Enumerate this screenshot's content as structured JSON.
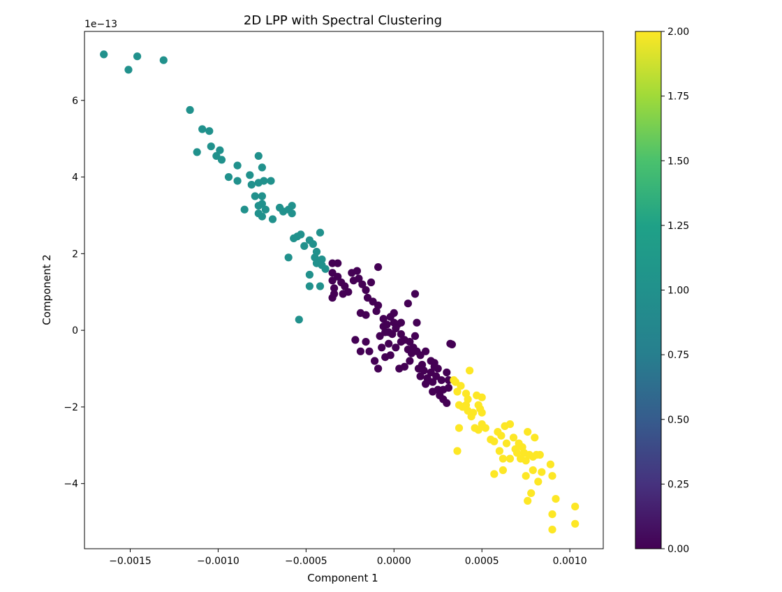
{
  "chart_data": {
    "type": "scatter",
    "title": "2D LPP with Spectral Clustering",
    "xlabel": "Component 1",
    "ylabel": "Component 2",
    "y_offset_label": "1e−13",
    "xlim": [
      -0.00176,
      0.00119
    ],
    "ylim": [
      -5.7,
      7.8
    ],
    "x_ticks": [
      {
        "value": -0.0015,
        "label": "−0.0015"
      },
      {
        "value": -0.001,
        "label": "−0.0010"
      },
      {
        "value": -0.0005,
        "label": "−0.0005"
      },
      {
        "value": 0.0,
        "label": "0.0000"
      },
      {
        "value": 0.0005,
        "label": "0.0005"
      },
      {
        "value": 0.001,
        "label": "0.0010"
      }
    ],
    "y_ticks": [
      {
        "value": -4,
        "label": "−4"
      },
      {
        "value": -2,
        "label": "−2"
      },
      {
        "value": 0,
        "label": "0"
      },
      {
        "value": 2,
        "label": "2"
      },
      {
        "value": 4,
        "label": "4"
      },
      {
        "value": 6,
        "label": "6"
      }
    ],
    "grid": false,
    "colorbar": {
      "colormap": "viridis",
      "range": [
        0,
        2
      ],
      "ticks": [
        {
          "value": 0.0,
          "label": "0.00"
        },
        {
          "value": 0.25,
          "label": "0.25"
        },
        {
          "value": 0.5,
          "label": "0.50"
        },
        {
          "value": 0.75,
          "label": "0.75"
        },
        {
          "value": 1.0,
          "label": "1.00"
        },
        {
          "value": 1.25,
          "label": "1.25"
        },
        {
          "value": 1.5,
          "label": "1.50"
        },
        {
          "value": 1.75,
          "label": "1.75"
        },
        {
          "value": 2.0,
          "label": "2.00"
        }
      ]
    },
    "series": [
      {
        "cluster": 1,
        "color": "#21918c",
        "points": [
          [
            -0.00165,
            7.2
          ],
          [
            -0.00146,
            7.15
          ],
          [
            -0.00151,
            6.8
          ],
          [
            -0.00131,
            7.05
          ],
          [
            -0.00116,
            5.75
          ],
          [
            -0.00109,
            5.25
          ],
          [
            -0.00105,
            5.2
          ],
          [
            -0.00112,
            4.65
          ],
          [
            -0.00104,
            4.8
          ],
          [
            -0.00099,
            4.7
          ],
          [
            -0.00101,
            4.55
          ],
          [
            -0.00098,
            4.45
          ],
          [
            -0.00094,
            4.0
          ],
          [
            -0.00089,
            4.3
          ],
          [
            -0.00089,
            3.9
          ],
          [
            -0.00082,
            4.05
          ],
          [
            -0.00077,
            4.55
          ],
          [
            -0.00081,
            3.8
          ],
          [
            -0.00077,
            3.85
          ],
          [
            -0.00075,
            4.25
          ],
          [
            -0.00074,
            3.9
          ],
          [
            -0.0007,
            3.9
          ],
          [
            -0.00075,
            3.5
          ],
          [
            -0.00079,
            3.5
          ],
          [
            -0.00075,
            3.3
          ],
          [
            -0.00077,
            3.25
          ],
          [
            -0.00073,
            3.15
          ],
          [
            -0.00077,
            3.05
          ],
          [
            -0.00075,
            2.97
          ],
          [
            -0.00085,
            3.15
          ],
          [
            -0.00069,
            2.9
          ],
          [
            -0.00065,
            3.2
          ],
          [
            -0.00063,
            3.1
          ],
          [
            -0.0006,
            3.15
          ],
          [
            -0.00058,
            3.25
          ],
          [
            -0.00058,
            3.05
          ],
          [
            -0.00055,
            2.45
          ],
          [
            -0.00053,
            2.5
          ],
          [
            -0.00057,
            2.4
          ],
          [
            -0.00051,
            2.2
          ],
          [
            -0.00048,
            2.35
          ],
          [
            -0.00046,
            2.25
          ],
          [
            -0.00044,
            2.05
          ],
          [
            -0.00042,
            2.55
          ],
          [
            -0.00045,
            1.9
          ],
          [
            -0.00044,
            1.75
          ],
          [
            -0.00041,
            1.85
          ],
          [
            -0.00041,
            1.7
          ],
          [
            -0.00039,
            1.6
          ],
          [
            -0.00048,
            1.45
          ],
          [
            -0.00048,
            1.15
          ],
          [
            -0.00042,
            1.15
          ],
          [
            -0.0006,
            1.9
          ],
          [
            -0.00054,
            0.28
          ]
        ]
      },
      {
        "cluster": 0,
        "color": "#440154",
        "points": [
          [
            -0.00035,
            1.75
          ],
          [
            -0.00032,
            1.75
          ],
          [
            -0.00035,
            1.5
          ],
          [
            -0.00032,
            1.4
          ],
          [
            -0.00035,
            1.3
          ],
          [
            -0.00034,
            1.1
          ],
          [
            -0.00035,
            0.85
          ],
          [
            -0.00034,
            0.95
          ],
          [
            -0.0003,
            1.25
          ],
          [
            -0.00028,
            1.15
          ],
          [
            -0.00026,
            1.0
          ],
          [
            -0.00029,
            0.95
          ],
          [
            -0.00024,
            1.5
          ],
          [
            -0.00023,
            1.3
          ],
          [
            -0.00021,
            1.55
          ],
          [
            -0.0002,
            1.35
          ],
          [
            -0.00018,
            1.2
          ],
          [
            -0.00016,
            1.05
          ],
          [
            -0.00013,
            1.25
          ],
          [
            -9e-05,
            1.65
          ],
          [
            -0.00012,
            0.75
          ],
          [
            -0.00015,
            0.85
          ],
          [
            -0.00019,
            0.45
          ],
          [
            -0.00016,
            0.4
          ],
          [
            -9e-05,
            0.65
          ],
          [
            -6e-05,
            0.3
          ],
          [
            -4e-05,
            0.15
          ],
          [
            -2e-05,
            0.35
          ],
          [
            0.0,
            0.45
          ],
          [
            0.0,
            0.2
          ],
          [
            2e-05,
            0.15
          ],
          [
            4e-05,
            0.2
          ],
          [
            1e-05,
            0.05
          ],
          [
            -3e-05,
            -0.05
          ],
          [
            -8e-05,
            -0.15
          ],
          [
            -5e-05,
            -0.05
          ],
          [
            4e-05,
            -0.1
          ],
          [
            6e-05,
            -0.25
          ],
          [
            9e-05,
            -0.3
          ],
          [
            8e-05,
            0.7
          ],
          [
            0.00012,
            0.95
          ],
          [
            0.00013,
            0.2
          ],
          [
            0.00012,
            -0.15
          ],
          [
            8e-05,
            -0.5
          ],
          [
            0.00011,
            -0.45
          ],
          [
            0.00013,
            -0.55
          ],
          [
            0.00015,
            -0.65
          ],
          [
            0.00016,
            -0.9
          ],
          [
            0.00018,
            -0.55
          ],
          [
            0.00021,
            -0.8
          ],
          [
            0.00023,
            -0.85
          ],
          [
            0.00025,
            -1.0
          ],
          [
            0.00021,
            -1.1
          ],
          [
            0.00024,
            -1.2
          ],
          [
            0.00022,
            -1.35
          ],
          [
            0.00019,
            -1.25
          ],
          [
            0.00017,
            -1.05
          ],
          [
            0.00014,
            -1.0
          ],
          [
            0.00015,
            -1.2
          ],
          [
            0.00018,
            -1.4
          ],
          [
            0.00022,
            -1.6
          ],
          [
            0.00025,
            -1.55
          ],
          [
            0.00027,
            -1.3
          ],
          [
            0.00028,
            -1.55
          ],
          [
            0.00026,
            -1.7
          ],
          [
            0.00028,
            -1.8
          ],
          [
            0.0003,
            -1.9
          ],
          [
            0.00031,
            -1.5
          ],
          [
            0.00031,
            -1.3
          ],
          [
            0.0003,
            -1.1
          ],
          [
            0.00023,
            -0.95
          ],
          [
            0.00032,
            -0.35
          ],
          [
            0.00033,
            -0.37
          ],
          [
            1e-05,
            -0.45
          ],
          [
            -3e-05,
            -0.35
          ],
          [
            -7e-05,
            -0.45
          ],
          [
            -0.00011,
            -0.8
          ],
          [
            -0.00014,
            -0.55
          ],
          [
            -0.00016,
            -0.3
          ],
          [
            -0.00022,
            -0.25
          ],
          [
            -0.00019,
            -0.55
          ],
          [
            -9e-05,
            -1.0
          ],
          [
            -5e-05,
            -0.7
          ],
          [
            -2e-05,
            -0.65
          ],
          [
            3e-05,
            -1.0
          ],
          [
            6e-05,
            -0.95
          ],
          [
            9e-05,
            -0.8
          ],
          [
            0.0001,
            -0.6
          ],
          [
            4e-05,
            -0.3
          ],
          [
            -1e-05,
            -0.1
          ],
          [
            -6e-05,
            0.1
          ],
          [
            -0.0001,
            0.5
          ]
        ]
      },
      {
        "cluster": 2,
        "color": "#fde725",
        "points": [
          [
            0.00034,
            -1.3
          ],
          [
            0.00035,
            -1.35
          ],
          [
            0.00038,
            -1.45
          ],
          [
            0.00036,
            -1.6
          ],
          [
            0.00041,
            -1.65
          ],
          [
            0.00042,
            -1.8
          ],
          [
            0.00041,
            -1.95
          ],
          [
            0.00039,
            -2.0
          ],
          [
            0.00037,
            -1.95
          ],
          [
            0.00042,
            -2.1
          ],
          [
            0.00047,
            -1.7
          ],
          [
            0.00048,
            -1.95
          ],
          [
            0.0005,
            -1.75
          ],
          [
            0.00049,
            -2.05
          ],
          [
            0.00045,
            -2.15
          ],
          [
            0.00044,
            -2.25
          ],
          [
            0.0005,
            -2.15
          ],
          [
            0.00046,
            -2.55
          ],
          [
            0.00048,
            -2.6
          ],
          [
            0.0005,
            -2.45
          ],
          [
            0.00052,
            -2.55
          ],
          [
            0.00043,
            -1.05
          ],
          [
            0.00037,
            -2.55
          ],
          [
            0.00036,
            -3.15
          ],
          [
            0.00055,
            -2.85
          ],
          [
            0.00057,
            -2.9
          ],
          [
            0.00059,
            -2.65
          ],
          [
            0.00061,
            -2.75
          ],
          [
            0.00063,
            -2.5
          ],
          [
            0.00066,
            -2.45
          ],
          [
            0.00068,
            -2.8
          ],
          [
            0.00064,
            -2.95
          ],
          [
            0.0006,
            -3.15
          ],
          [
            0.00062,
            -3.35
          ],
          [
            0.00066,
            -3.35
          ],
          [
            0.00069,
            -3.1
          ],
          [
            0.00071,
            -2.95
          ],
          [
            0.00073,
            -3.05
          ],
          [
            0.00074,
            -3.2
          ],
          [
            0.00072,
            -3.35
          ],
          [
            0.00075,
            -3.4
          ],
          [
            0.00077,
            -3.25
          ],
          [
            0.00079,
            -3.3
          ],
          [
            0.00081,
            -3.25
          ],
          [
            0.00083,
            -3.25
          ],
          [
            0.00076,
            -2.65
          ],
          [
            0.0008,
            -2.8
          ],
          [
            0.0007,
            -3.2
          ],
          [
            0.00057,
            -3.75
          ],
          [
            0.00062,
            -3.65
          ],
          [
            0.00075,
            -3.8
          ],
          [
            0.00079,
            -3.65
          ],
          [
            0.00084,
            -3.7
          ],
          [
            0.00089,
            -3.5
          ],
          [
            0.0009,
            -3.8
          ],
          [
            0.00082,
            -3.95
          ],
          [
            0.00078,
            -4.25
          ],
          [
            0.00076,
            -4.45
          ],
          [
            0.00092,
            -4.4
          ],
          [
            0.00103,
            -4.6
          ],
          [
            0.0009,
            -4.8
          ],
          [
            0.00103,
            -5.05
          ],
          [
            0.0009,
            -5.2
          ]
        ]
      }
    ]
  }
}
